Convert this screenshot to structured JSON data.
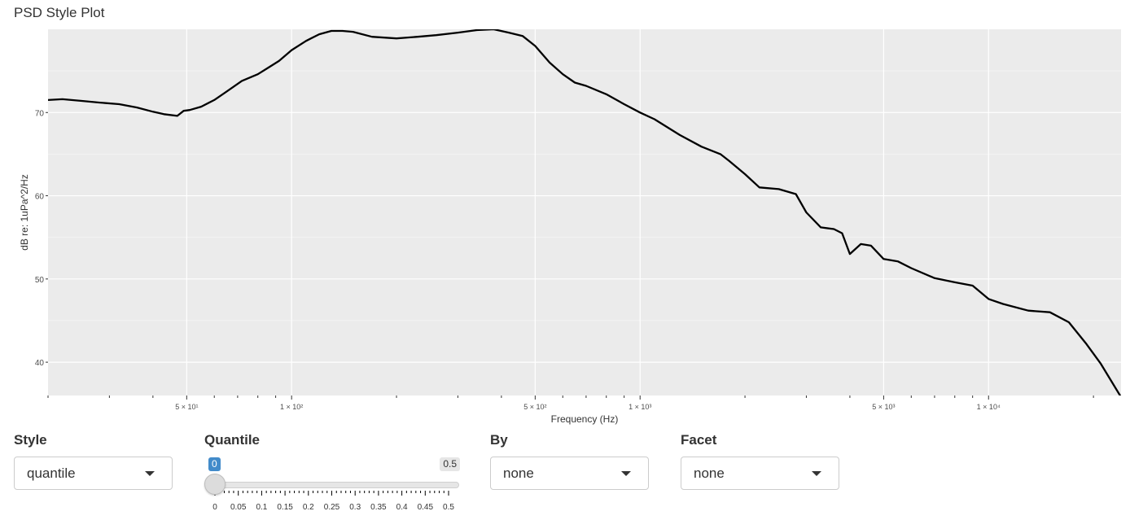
{
  "app": {
    "title": "PSD Style Plot"
  },
  "chart_data": {
    "type": "line",
    "title": "",
    "xlabel": "Frequency (Hz)",
    "ylabel": "dB re: 1uPa^2/Hz",
    "xscale": "log",
    "xlim": [
      20,
      24000
    ],
    "ylim": [
      36,
      80
    ],
    "grid": true,
    "background": "#EBEBEB",
    "line_color": "#000000",
    "x_ticks": [
      {
        "value": 50,
        "label": "5 × 10¹"
      },
      {
        "value": 100,
        "label": "1 × 10²"
      },
      {
        "value": 500,
        "label": "5 × 10²"
      },
      {
        "value": 1000,
        "label": "1 × 10³"
      },
      {
        "value": 5000,
        "label": "5 × 10³"
      },
      {
        "value": 10000,
        "label": "1 × 10⁴"
      }
    ],
    "y_ticks": [
      {
        "value": 40,
        "label": "40"
      },
      {
        "value": 50,
        "label": "50"
      },
      {
        "value": 60,
        "label": "60"
      },
      {
        "value": 70,
        "label": "70"
      }
    ],
    "series": [
      {
        "x": [
          20,
          22,
          25,
          28,
          32,
          36,
          40,
          43,
          47,
          49,
          51,
          55,
          60,
          65,
          72,
          80,
          85,
          92,
          100,
          110,
          120,
          130,
          140,
          150,
          170,
          200,
          230,
          260,
          300,
          340,
          380,
          420,
          460,
          500,
          550,
          600,
          650,
          700,
          800,
          900,
          1000,
          1100,
          1300,
          1500,
          1700,
          1800,
          2000,
          2200,
          2500,
          2800,
          3000,
          3300,
          3600,
          3800,
          4000,
          4300,
          4600,
          5000,
          5500,
          6000,
          7000,
          8000,
          9000,
          10000,
          11000,
          13000,
          15000,
          17000,
          19000,
          21000,
          24000
        ],
        "y": [
          71.5,
          71.6,
          71.4,
          71.2,
          71.0,
          70.6,
          70.1,
          69.8,
          69.6,
          70.2,
          70.3,
          70.7,
          71.5,
          72.5,
          73.8,
          74.6,
          75.3,
          76.2,
          77.5,
          78.6,
          79.4,
          79.8,
          79.8,
          79.7,
          79.1,
          78.9,
          79.1,
          79.3,
          79.6,
          79.9,
          80.0,
          79.6,
          79.2,
          78.0,
          76.0,
          74.6,
          73.6,
          73.2,
          72.2,
          71.0,
          70.0,
          69.2,
          67.3,
          65.9,
          65.0,
          64.2,
          62.6,
          61.0,
          60.8,
          60.2,
          58.0,
          56.2,
          56.0,
          55.5,
          53.0,
          54.2,
          54.0,
          52.4,
          52.1,
          51.3,
          50.1,
          49.6,
          49.2,
          47.6,
          47.0,
          46.2,
          46.0,
          44.8,
          42.3,
          39.8,
          35.8
        ]
      }
    ]
  },
  "controls": {
    "style": {
      "label": "Style",
      "value": "quantile"
    },
    "quantile": {
      "label": "Quantile",
      "min_badge": "0",
      "max_badge": "0.5",
      "value": 0,
      "min": 0,
      "max": 0.5,
      "tick_labels": [
        "0",
        "0.05",
        "0.1",
        "0.15",
        "0.2",
        "0.25",
        "0.3",
        "0.35",
        "0.4",
        "0.45",
        "0.5"
      ]
    },
    "by": {
      "label": "By",
      "value": "none"
    },
    "facet": {
      "label": "Facet",
      "value": "none"
    }
  }
}
